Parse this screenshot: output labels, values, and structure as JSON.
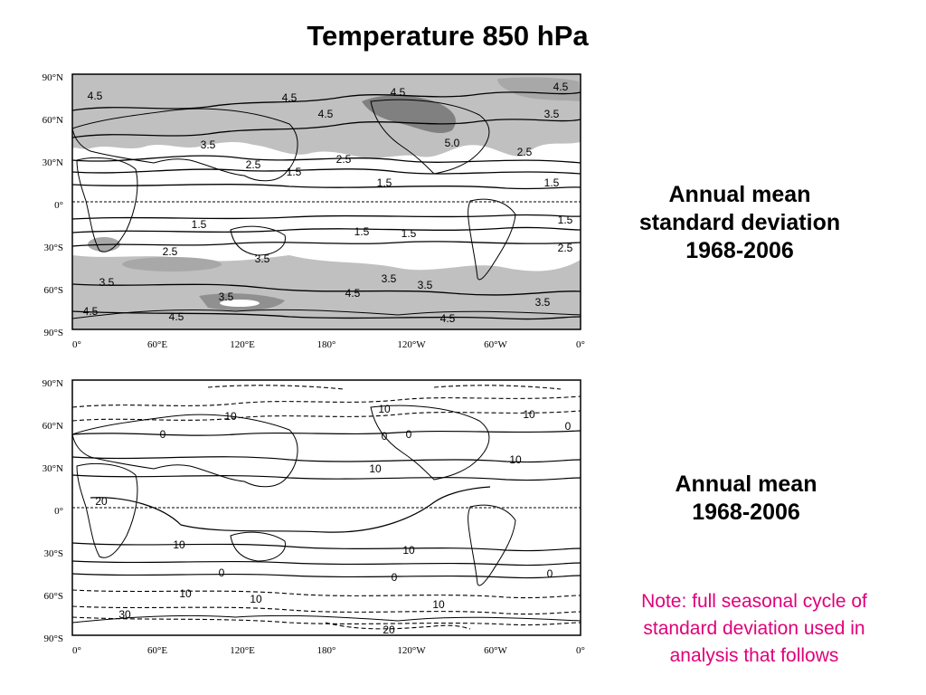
{
  "title": "Temperature 850 hPa",
  "lat_ticks": [
    "90°N",
    "60°N",
    "30°N",
    "0°",
    "30°S",
    "60°S",
    "90°S"
  ],
  "lon_ticks": [
    "0°",
    "60°E",
    "120°E",
    "180°",
    "120°W",
    "60°W",
    "0°"
  ],
  "panels": [
    {
      "id": "std",
      "label_lines": [
        "Annual mean",
        "standard deviation",
        "1968-2006"
      ],
      "contour_labels": [
        "4.5",
        "4.5",
        "4.5",
        "4.5",
        "4.5",
        "3.5",
        "5.0",
        "3.5",
        "2.5",
        "2.5",
        "1.5",
        "2.5",
        "1.5",
        "1.5",
        "1.5",
        "1.5",
        "1.5",
        "1.5",
        "2.5",
        "2.5",
        "3.5",
        "3.5",
        "3.5",
        "3.5",
        "3.5",
        "4.5",
        "4.5",
        "4.5",
        "4.5",
        "3.5"
      ],
      "shading": {
        "light": "#c0c0c0",
        "dark": "#808080"
      }
    },
    {
      "id": "mean",
      "label_lines": [
        "Annual mean",
        "1968-2006"
      ],
      "contour_labels": [
        "10",
        "10",
        "10",
        "0",
        "0",
        "0",
        "10",
        "0",
        "10",
        "20",
        "10",
        "10",
        "0",
        "0",
        "0",
        "10",
        "10",
        "10",
        "30",
        "20"
      ]
    }
  ],
  "note": "Note: full seasonal cycle of standard deviation used in analysis that follows",
  "colors": {
    "note": "#e0007a",
    "text": "#000000"
  }
}
